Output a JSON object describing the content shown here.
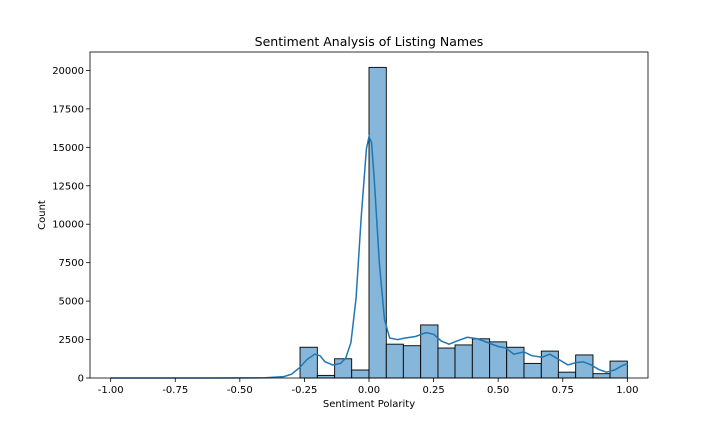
{
  "chart_data": {
    "type": "bar",
    "title": "Sentiment Analysis of Listing Names",
    "xlabel": "Sentiment Polarity",
    "ylabel": "Count",
    "xlim": [
      -1.08,
      1.08
    ],
    "ylim": [
      0,
      21200
    ],
    "grid": false,
    "legend": "none",
    "colors": {
      "bar_fill": "#86b6d9",
      "bar_edge": "#000000",
      "kde_line": "#1f77b4"
    },
    "x_ticks": [
      -1.0,
      -0.75,
      -0.5,
      -0.25,
      0.0,
      0.25,
      0.5,
      0.75,
      1.0
    ],
    "x_tick_labels": [
      "-1.00",
      "-0.75",
      "-0.50",
      "-0.25",
      "0.00",
      "0.25",
      "0.50",
      "0.75",
      "1.00"
    ],
    "y_ticks": [
      0,
      2500,
      5000,
      7500,
      10000,
      12500,
      15000,
      17500,
      20000
    ],
    "y_tick_labels": [
      "0",
      "2500",
      "5000",
      "7500",
      "10000",
      "12500",
      "15000",
      "17500",
      "20000"
    ],
    "bins": [
      {
        "x0": -0.267,
        "x1": -0.2,
        "count": 2000
      },
      {
        "x0": -0.2,
        "x1": -0.133,
        "count": 170
      },
      {
        "x0": -0.133,
        "x1": -0.067,
        "count": 1250
      },
      {
        "x0": -0.067,
        "x1": 0.0,
        "count": 520
      },
      {
        "x0": 0.0,
        "x1": 0.067,
        "count": 20200
      },
      {
        "x0": 0.067,
        "x1": 0.133,
        "count": 2200
      },
      {
        "x0": 0.133,
        "x1": 0.2,
        "count": 2100
      },
      {
        "x0": 0.2,
        "x1": 0.267,
        "count": 3450
      },
      {
        "x0": 0.267,
        "x1": 0.333,
        "count": 1950
      },
      {
        "x0": 0.333,
        "x1": 0.4,
        "count": 2150
      },
      {
        "x0": 0.4,
        "x1": 0.467,
        "count": 2550
      },
      {
        "x0": 0.467,
        "x1": 0.533,
        "count": 2350
      },
      {
        "x0": 0.533,
        "x1": 0.6,
        "count": 2000
      },
      {
        "x0": 0.6,
        "x1": 0.667,
        "count": 950
      },
      {
        "x0": 0.667,
        "x1": 0.733,
        "count": 1750
      },
      {
        "x0": 0.733,
        "x1": 0.8,
        "count": 380
      },
      {
        "x0": 0.8,
        "x1": 0.867,
        "count": 1500
      },
      {
        "x0": 0.867,
        "x1": 0.933,
        "count": 280
      },
      {
        "x0": 0.933,
        "x1": 1.0,
        "count": 1100
      }
    ],
    "kde": [
      [
        -1.0,
        0
      ],
      [
        -0.6,
        0
      ],
      [
        -0.4,
        15
      ],
      [
        -0.33,
        90
      ],
      [
        -0.3,
        250
      ],
      [
        -0.27,
        650
      ],
      [
        -0.24,
        1200
      ],
      [
        -0.21,
        1550
      ],
      [
        -0.19,
        1450
      ],
      [
        -0.17,
        1050
      ],
      [
        -0.14,
        850
      ],
      [
        -0.11,
        950
      ],
      [
        -0.09,
        1300
      ],
      [
        -0.07,
        2300
      ],
      [
        -0.05,
        5200
      ],
      [
        -0.03,
        10500
      ],
      [
        -0.01,
        14900
      ],
      [
        0.0,
        15700
      ],
      [
        0.01,
        15300
      ],
      [
        0.02,
        13000
      ],
      [
        0.04,
        7500
      ],
      [
        0.06,
        3800
      ],
      [
        0.08,
        2600
      ],
      [
        0.11,
        2500
      ],
      [
        0.14,
        2600
      ],
      [
        0.18,
        2700
      ],
      [
        0.22,
        2950
      ],
      [
        0.25,
        2850
      ],
      [
        0.28,
        2400
      ],
      [
        0.31,
        2200
      ],
      [
        0.34,
        2400
      ],
      [
        0.38,
        2650
      ],
      [
        0.42,
        2550
      ],
      [
        0.46,
        2300
      ],
      [
        0.5,
        2050
      ],
      [
        0.53,
        1950
      ],
      [
        0.56,
        1550
      ],
      [
        0.6,
        1700
      ],
      [
        0.63,
        1450
      ],
      [
        0.67,
        1350
      ],
      [
        0.7,
        1550
      ],
      [
        0.73,
        1250
      ],
      [
        0.77,
        850
      ],
      [
        0.8,
        1000
      ],
      [
        0.83,
        1050
      ],
      [
        0.86,
        850
      ],
      [
        0.89,
        550
      ],
      [
        0.92,
        380
      ],
      [
        0.95,
        520
      ],
      [
        0.98,
        800
      ],
      [
        1.0,
        930
      ]
    ]
  }
}
